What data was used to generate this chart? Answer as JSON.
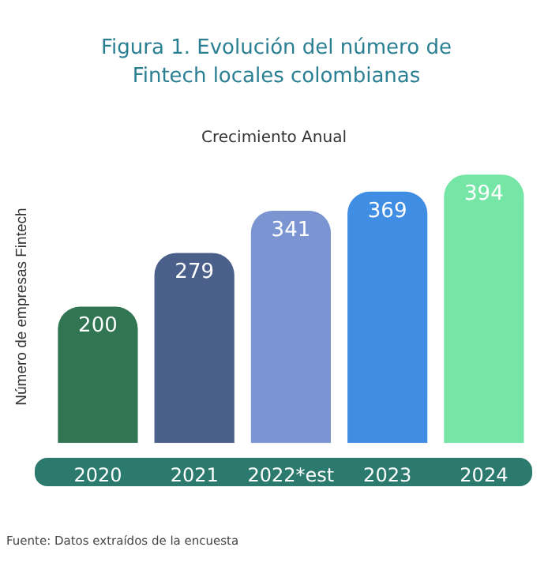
{
  "chart_data": {
    "type": "bar",
    "title": "Figura 1. Evolución del número de Fintech locales colombianas",
    "subtitle": "Crecimiento Anual",
    "ylabel": "Número de empresas Fintech",
    "categories": [
      "2020",
      "2021",
      "2022*est",
      "2023",
      "2024"
    ],
    "values": [
      200,
      279,
      341,
      369,
      394
    ],
    "colors": [
      "#327552",
      "#4b5f8b",
      "#7b95d2",
      "#3f8ee3",
      "#76e6a6"
    ],
    "data_labels": true,
    "annotations": [
      "Fuente: Datos extraídos de la encuesta"
    ]
  }
}
